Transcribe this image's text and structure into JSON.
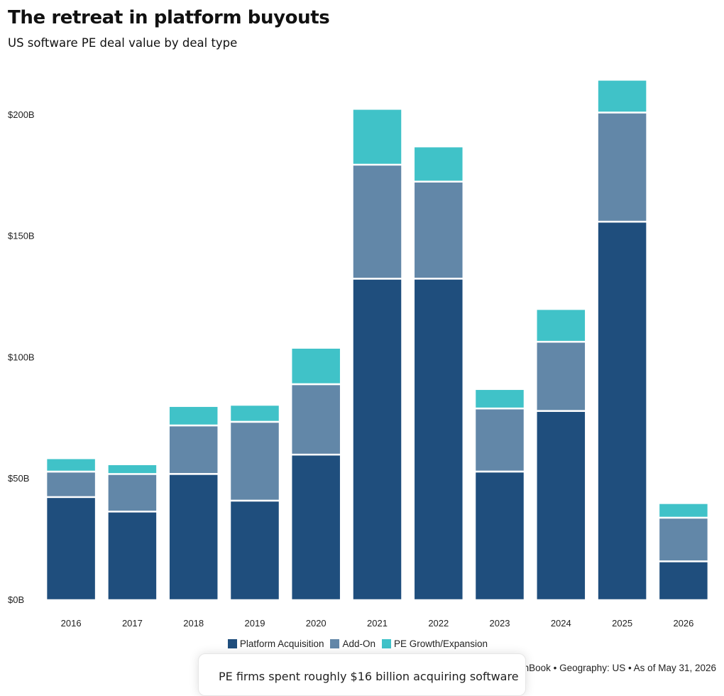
{
  "title": "The retreat in platform buyouts",
  "subtitle": "US software PE deal value by deal type",
  "source": "Source: PitchBook • Geography: US • As of May 31, 2026",
  "tooltip": "PE firms spent roughly $16 billion acquiring software",
  "colors": {
    "platform": "#1f4e7d",
    "addon": "#6287a8",
    "growth": "#40c2c8",
    "separator": "#ffffff"
  },
  "chart_data": {
    "type": "bar",
    "stacked": true,
    "categories": [
      "2016",
      "2017",
      "2018",
      "2019",
      "2020",
      "2021",
      "2022",
      "2023",
      "2024",
      "2025",
      "2026"
    ],
    "series": [
      {
        "name": "Platform Acquisition",
        "color": "#1f4e7d",
        "values": [
          42.5,
          36.5,
          52,
          41,
          60,
          132.5,
          132.5,
          53,
          78,
          156,
          16
        ]
      },
      {
        "name": "Add-On",
        "color": "#6287a8",
        "values": [
          10.5,
          15.5,
          20,
          32.5,
          29,
          47,
          40,
          26,
          28.5,
          45,
          18
        ]
      },
      {
        "name": "PE Growth/Expansion",
        "color": "#40c2c8",
        "values": [
          5.5,
          4,
          8,
          7,
          15,
          23,
          14.5,
          8,
          13.5,
          13.5,
          6
        ]
      }
    ],
    "yticks": [
      "$0B",
      "$50B",
      "$100B",
      "$150B",
      "$200B"
    ],
    "ytick_values": [
      0,
      50,
      100,
      150,
      200
    ],
    "ylim": [
      0,
      220
    ],
    "grid": false,
    "legend_position": "bottom-center"
  }
}
